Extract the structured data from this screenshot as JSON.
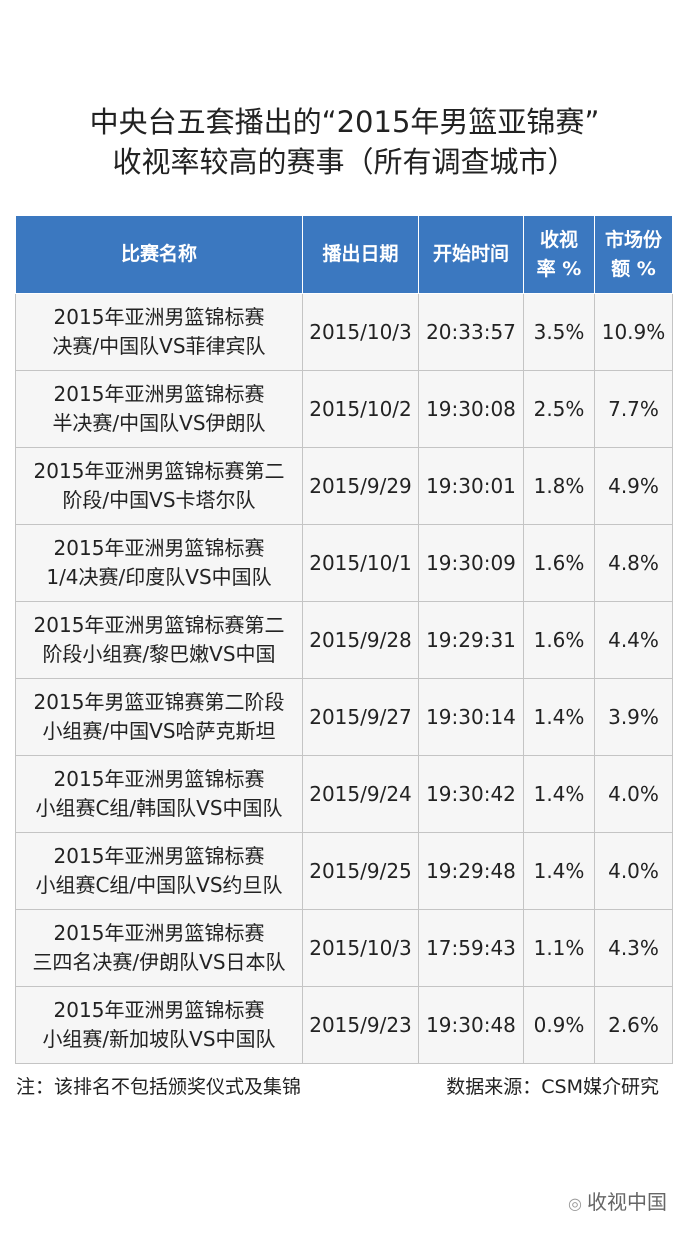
{
  "title": [
    "中央台五套播出的“2015年男篮亚锦赛”",
    "收视率较高的赛事（所有调查城市）"
  ],
  "table": {
    "header": [
      [
        "比赛名称"
      ],
      [
        "播出日期"
      ],
      [
        "开始时间"
      ],
      [
        "收视",
        "率 %"
      ],
      [
        "市场份",
        "额 %"
      ]
    ],
    "rows": [
      [
        [
          "2015年亚洲男篮锦标赛",
          "决赛/中国队VS菲律宾队"
        ],
        "2015/10/3",
        "20:33:57",
        "3.5%",
        "10.9%"
      ],
      [
        [
          "2015年亚洲男篮锦标赛",
          "半决赛/中国队VS伊朗队"
        ],
        "2015/10/2",
        "19:30:08",
        "2.5%",
        "7.7%"
      ],
      [
        [
          "2015年亚洲男篮锦标赛第二",
          "阶段/中国VS卡塔尔队"
        ],
        "2015/9/29",
        "19:30:01",
        "1.8%",
        "4.9%"
      ],
      [
        [
          "2015年亚洲男篮锦标赛",
          "1/4决赛/印度队VS中国队"
        ],
        "2015/10/1",
        "19:30:09",
        "1.6%",
        "4.8%"
      ],
      [
        [
          "2015年亚洲男篮锦标赛第二",
          "阶段小组赛/黎巴嫩VS中国"
        ],
        "2015/9/28",
        "19:29:31",
        "1.6%",
        "4.4%"
      ],
      [
        [
          "2015年男篮亚锦赛第二阶段",
          "小组赛/中国VS哈萨克斯坦"
        ],
        "2015/9/27",
        "19:30:14",
        "1.4%",
        "3.9%"
      ],
      [
        [
          "2015年亚洲男篮锦标赛",
          "小组赛C组/韩国队VS中国队"
        ],
        "2015/9/24",
        "19:30:42",
        "1.4%",
        "4.0%"
      ],
      [
        [
          "2015年亚洲男篮锦标赛",
          "小组赛C组/中国队VS约旦队"
        ],
        "2015/9/25",
        "19:29:48",
        "1.4%",
        "4.0%"
      ],
      [
        [
          "2015年亚洲男篮锦标赛",
          "三四名决赛/伊朗队VS日本队"
        ],
        "2015/10/3",
        "17:59:43",
        "1.1%",
        "4.3%"
      ],
      [
        [
          "2015年亚洲男篮锦标赛",
          "小组赛/新加坡队VS中国队"
        ],
        "2015/9/23",
        "19:30:48",
        "0.9%",
        "2.6%"
      ]
    ]
  },
  "note": "注：该排名不包括颁奖仪式及集锦",
  "source": "数据来源：CSM媒介研究",
  "watermark": "收视中国"
}
